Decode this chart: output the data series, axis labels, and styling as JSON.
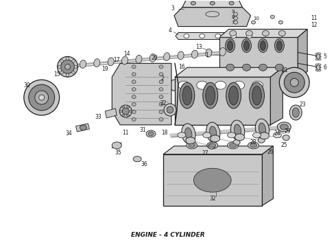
{
  "title": "ENGINE - 4 CYLINDER",
  "bg_color": "#ffffff",
  "line_color": "#1a1a1a",
  "gray1": "#b0b0b0",
  "gray2": "#c8c8c8",
  "gray3": "#909090",
  "gray4": "#d8d8d8",
  "title_fontsize": 6.5,
  "fig_width": 4.9,
  "fig_height": 3.6,
  "dpi": 100
}
